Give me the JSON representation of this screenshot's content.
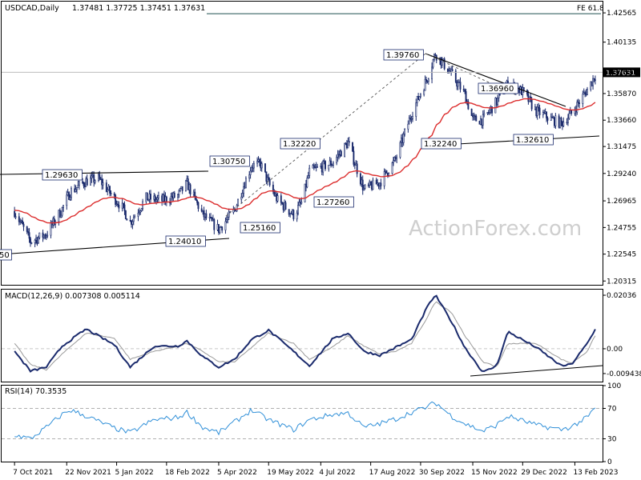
{
  "header": {
    "symbol": "USDCAD,Daily",
    "ohlc": "1.37481 1.37725 1.37451 1.37631"
  },
  "watermark": "ActionForex.com",
  "colors": {
    "candle": "#1a2a6c",
    "ema": "#dc2d2d",
    "signal": "#999999",
    "trendline": "#000000",
    "fe_line": "#1f4f4f",
    "grid": "#d0d0d0"
  },
  "chart_data": [
    {
      "type": "candlestick",
      "title": "USDCAD,Daily",
      "ylim": [
        1.2,
        1.435
      ],
      "y_ticks": [
        "1.42565",
        "1.40135",
        "1.37631",
        "1.35870",
        "1.33660",
        "1.31475",
        "1.29240",
        "1.26965",
        "1.24755",
        "1.22545",
        "1.20315"
      ],
      "x_ticks": [
        "7 Oct 2021",
        "22 Nov 2021",
        "5 Jan 2022",
        "18 Feb 2022",
        "5 Apr 2022",
        "19 May 2022",
        "4 Jul 2022",
        "17 Aug 2022",
        "30 Sep 2022",
        "15 Nov 2022",
        "29 Dec 2022",
        "13 Feb 2023"
      ],
      "current_price": "1.37631",
      "fe_level": "FE 61.8",
      "annotations": [
        {
          "label": "1.29630",
          "date": "2021-11-22"
        },
        {
          "label": "1.24010",
          "date": "2022-04-05"
        },
        {
          "label": "1.30750",
          "date": "2022-05-04"
        },
        {
          "label": "1.25160",
          "date": "2022-05-12"
        },
        {
          "label": "1.32220",
          "date": "2022-07-14"
        },
        {
          "label": "1.27260",
          "date": "2022-08-11"
        },
        {
          "label": "1.39760",
          "date": "2022-10-13"
        },
        {
          "label": "1.32240",
          "date": "2022-11-15"
        },
        {
          "label": "1.36960",
          "date": "2022-12-16"
        },
        {
          "label": "1.32610",
          "date": "2023-02-01"
        },
        {
          "label": "50",
          "date": "2021-10-07"
        }
      ],
      "close_path": [
        [
          "2021-10-07",
          1.261
        ],
        [
          "2021-10-21",
          1.236
        ],
        [
          "2021-11-04",
          1.242
        ],
        [
          "2021-11-18",
          1.263
        ],
        [
          "2021-11-25",
          1.277
        ],
        [
          "2021-12-09",
          1.286
        ],
        [
          "2021-12-20",
          1.288
        ],
        [
          "2022-01-03",
          1.272
        ],
        [
          "2022-01-10",
          1.264
        ],
        [
          "2022-01-17",
          1.252
        ],
        [
          "2022-01-31",
          1.272
        ],
        [
          "2022-02-14",
          1.27
        ],
        [
          "2022-02-28",
          1.274
        ],
        [
          "2022-03-08",
          1.284
        ],
        [
          "2022-03-22",
          1.258
        ],
        [
          "2022-04-05",
          1.246
        ],
        [
          "2022-04-19",
          1.262
        ],
        [
          "2022-04-26",
          1.28
        ],
        [
          "2022-05-04",
          1.299
        ],
        [
          "2022-05-12",
          1.3
        ],
        [
          "2022-05-19",
          1.284
        ],
        [
          "2022-05-27",
          1.27
        ],
        [
          "2022-06-10",
          1.258
        ],
        [
          "2022-06-17",
          1.268
        ],
        [
          "2022-06-24",
          1.294
        ],
        [
          "2022-07-14",
          1.301
        ],
        [
          "2022-07-28",
          1.318
        ],
        [
          "2022-08-11",
          1.279
        ],
        [
          "2022-08-25",
          1.285
        ],
        [
          "2022-09-08",
          1.304
        ],
        [
          "2022-09-22",
          1.342
        ],
        [
          "2022-10-06",
          1.372
        ],
        [
          "2022-10-13",
          1.392
        ],
        [
          "2022-10-27",
          1.375
        ],
        [
          "2022-11-08",
          1.358
        ],
        [
          "2022-11-15",
          1.337
        ],
        [
          "2022-11-24",
          1.337
        ],
        [
          "2022-12-06",
          1.352
        ],
        [
          "2022-12-16",
          1.367
        ],
        [
          "2022-12-29",
          1.36
        ],
        [
          "2023-01-10",
          1.344
        ],
        [
          "2023-01-24",
          1.337
        ],
        [
          "2023-02-01",
          1.334
        ],
        [
          "2023-02-10",
          1.342
        ],
        [
          "2023-02-24",
          1.362
        ],
        [
          "2023-03-03",
          1.374
        ]
      ]
    },
    {
      "type": "line",
      "title": "MACD(12,26,9) 0.007308 0.005114",
      "ylim": [
        -0.0125,
        0.0225
      ],
      "y_ticks": [
        "0.02036",
        "0.00",
        "-0.009438"
      ],
      "series": [
        {
          "name": "MACD",
          "values": [
            [
              "2021-10-07",
              -0.001
            ],
            [
              "2021-10-21",
              -0.0085
            ],
            [
              "2021-11-04",
              -0.007
            ],
            [
              "2021-11-18",
              0.001
            ],
            [
              "2021-12-09",
              0.0075
            ],
            [
              "2022-01-03",
              0.0015
            ],
            [
              "2022-01-17",
              -0.007
            ],
            [
              "2022-02-07",
              0.001
            ],
            [
              "2022-02-28",
              0.001
            ],
            [
              "2022-03-08",
              0.003
            ],
            [
              "2022-03-22",
              -0.003
            ],
            [
              "2022-04-05",
              -0.007
            ],
            [
              "2022-04-19",
              -0.004
            ],
            [
              "2022-05-04",
              0.0035
            ],
            [
              "2022-05-19",
              0.007
            ],
            [
              "2022-06-10",
              -0.001
            ],
            [
              "2022-06-24",
              -0.0065
            ],
            [
              "2022-07-14",
              0.0035
            ],
            [
              "2022-07-28",
              0.006
            ],
            [
              "2022-08-11",
              -0.001
            ],
            [
              "2022-08-25",
              -0.0025
            ],
            [
              "2022-09-08",
              0.0005
            ],
            [
              "2022-09-22",
              0.0035
            ],
            [
              "2022-10-06",
              0.016
            ],
            [
              "2022-10-13",
              0.0205
            ],
            [
              "2022-10-27",
              0.0105
            ],
            [
              "2022-11-08",
              0.0005
            ],
            [
              "2022-11-24",
              -0.009
            ],
            [
              "2022-12-06",
              -0.0065
            ],
            [
              "2022-12-16",
              0.0065
            ],
            [
              "2023-01-10",
              0.0005
            ],
            [
              "2023-02-01",
              -0.0065
            ],
            [
              "2023-02-10",
              -0.006
            ],
            [
              "2023-02-24",
              0.002
            ],
            [
              "2023-03-03",
              0.0073
            ]
          ]
        },
        {
          "name": "Signal",
          "values": [
            [
              "2021-10-07",
              0.002
            ],
            [
              "2021-10-21",
              -0.006
            ],
            [
              "2021-11-04",
              -0.008
            ],
            [
              "2021-11-18",
              -0.002
            ],
            [
              "2021-12-09",
              0.006
            ],
            [
              "2022-01-03",
              0.004
            ],
            [
              "2022-01-17",
              -0.004
            ],
            [
              "2022-02-07",
              -0.001
            ],
            [
              "2022-02-28",
              0.001
            ],
            [
              "2022-03-08",
              0.002
            ],
            [
              "2022-03-22",
              -0.001
            ],
            [
              "2022-04-05",
              -0.005
            ],
            [
              "2022-04-19",
              -0.005
            ],
            [
              "2022-05-04",
              0.0005
            ],
            [
              "2022-05-19",
              0.006
            ],
            [
              "2022-06-10",
              0.002
            ],
            [
              "2022-06-24",
              -0.004
            ],
            [
              "2022-07-14",
              0.0005
            ],
            [
              "2022-07-28",
              0.005
            ],
            [
              "2022-08-11",
              0.001
            ],
            [
              "2022-08-25",
              -0.002
            ],
            [
              "2022-09-08",
              -0.001
            ],
            [
              "2022-09-22",
              0.002
            ],
            [
              "2022-10-06",
              0.012
            ],
            [
              "2022-10-13",
              0.018
            ],
            [
              "2022-10-27",
              0.014
            ],
            [
              "2022-11-08",
              0.005
            ],
            [
              "2022-11-24",
              -0.005
            ],
            [
              "2022-12-06",
              -0.007
            ],
            [
              "2022-12-16",
              0.002
            ],
            [
              "2023-01-10",
              0.002
            ],
            [
              "2023-02-01",
              -0.004
            ],
            [
              "2023-02-10",
              -0.0055
            ],
            [
              "2023-02-24",
              -0.001
            ],
            [
              "2023-03-03",
              0.0051
            ]
          ]
        }
      ]
    },
    {
      "type": "line",
      "title": "RSI(14) 70.3535",
      "ylim": [
        0,
        100
      ],
      "y_ticks": [
        "100",
        "70",
        "30",
        "0"
      ],
      "series": [
        {
          "name": "RSI(14)",
          "values": [
            [
              "2021-10-07",
              35
            ],
            [
              "2021-10-21",
              30
            ],
            [
              "2021-11-04",
              45
            ],
            [
              "2021-11-18",
              62
            ],
            [
              "2021-11-25",
              68
            ],
            [
              "2021-12-09",
              60
            ],
            [
              "2022-01-03",
              44
            ],
            [
              "2022-01-17",
              38
            ],
            [
              "2022-02-07",
              55
            ],
            [
              "2022-02-28",
              58
            ],
            [
              "2022-03-08",
              65
            ],
            [
              "2022-03-22",
              45
            ],
            [
              "2022-04-05",
              38
            ],
            [
              "2022-04-19",
              52
            ],
            [
              "2022-05-04",
              68
            ],
            [
              "2022-05-19",
              55
            ],
            [
              "2022-06-10",
              42
            ],
            [
              "2022-06-24",
              55
            ],
            [
              "2022-07-14",
              62
            ],
            [
              "2022-07-28",
              64
            ],
            [
              "2022-08-11",
              45
            ],
            [
              "2022-08-25",
              50
            ],
            [
              "2022-09-08",
              56
            ],
            [
              "2022-09-22",
              65
            ],
            [
              "2022-10-06",
              72
            ],
            [
              "2022-10-13",
              78
            ],
            [
              "2022-10-27",
              60
            ],
            [
              "2022-11-08",
              50
            ],
            [
              "2022-11-24",
              40
            ],
            [
              "2022-12-06",
              48
            ],
            [
              "2022-12-16",
              60
            ],
            [
              "2023-01-10",
              48
            ],
            [
              "2023-02-01",
              42
            ],
            [
              "2023-02-10",
              46
            ],
            [
              "2023-02-24",
              58
            ],
            [
              "2023-03-03",
              70.35
            ]
          ]
        }
      ]
    }
  ]
}
